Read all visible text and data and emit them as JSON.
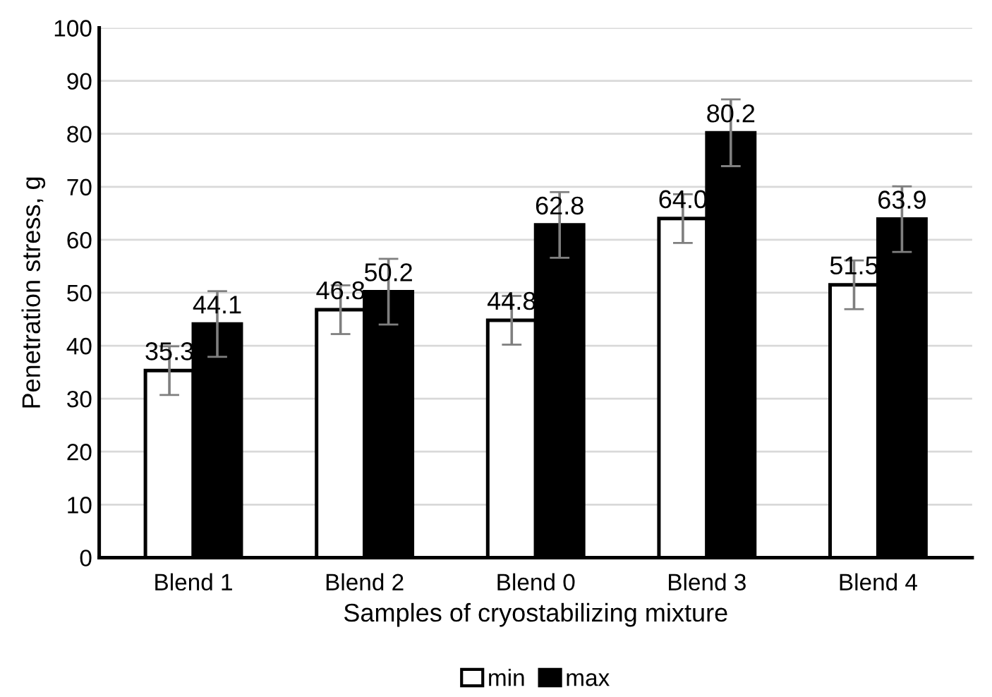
{
  "chart_data": {
    "type": "bar",
    "xlabel": "Samples of cryostabilizing mixture",
    "ylabel": "Penetration stress, g",
    "categories": [
      "Blend 1",
      "Blend 2",
      "Blend 0",
      "Blend 3",
      "Blend 4"
    ],
    "series": [
      {
        "name": "min",
        "color": "#ffffff",
        "values": [
          35.3,
          46.8,
          44.8,
          64.0,
          51.5
        ],
        "errors": [
          4.6,
          4.6,
          4.6,
          4.6,
          4.6
        ],
        "value_labels": [
          "35.3",
          "46.8",
          "44.8",
          "64.0",
          "51.5"
        ]
      },
      {
        "name": "max",
        "color": "#000000",
        "values": [
          44.1,
          50.2,
          62.8,
          80.2,
          63.9
        ],
        "errors": [
          6.2,
          6.2,
          6.2,
          6.3,
          6.2
        ],
        "value_labels": [
          "44.1",
          "50.2",
          "62.8",
          "80.2",
          "63.9"
        ]
      }
    ],
    "ylim": [
      0,
      100
    ],
    "yticks": [
      0,
      10,
      20,
      30,
      40,
      50,
      60,
      70,
      80,
      90,
      100
    ],
    "grid": "y",
    "legend": "bottom"
  }
}
